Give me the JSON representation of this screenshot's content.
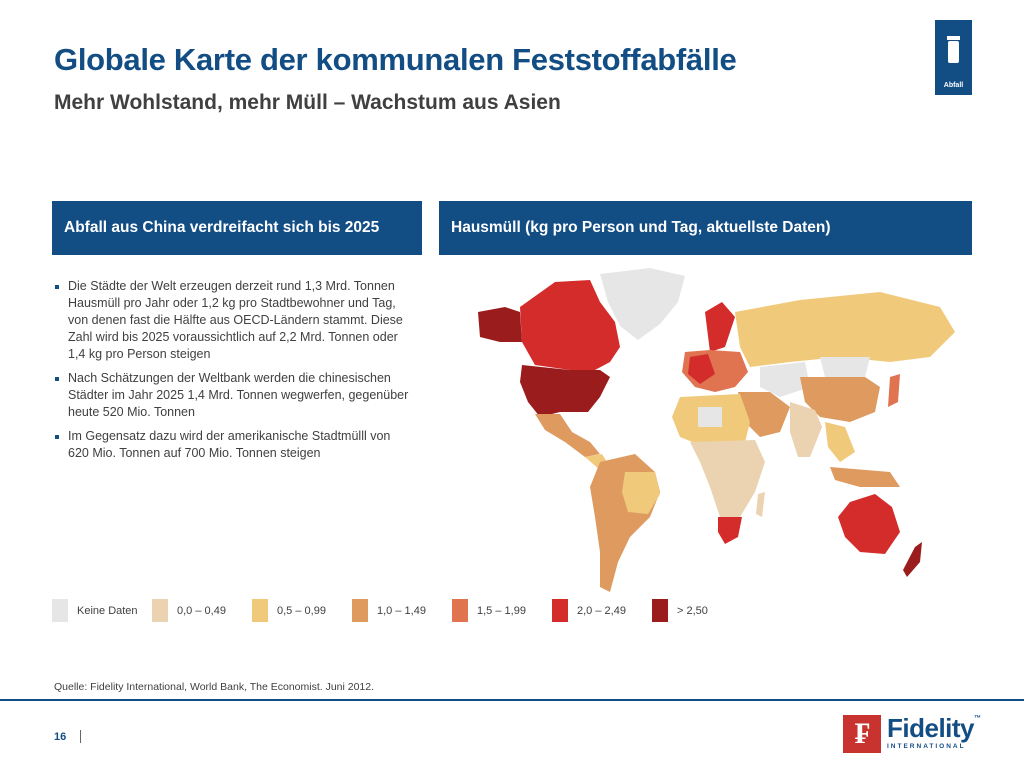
{
  "title": "Globale Karte der kommunalen Feststoffabfälle",
  "subtitle": "Mehr Wohlstand, mehr Müll – Wachstum aus Asien",
  "badge": {
    "icon": "trash-can-icon",
    "label": "Abfall"
  },
  "left_panel": {
    "header": "Abfall aus China verdreifacht sich bis 2025",
    "bullets": [
      "Die Städte der Welt erzeugen derzeit rund 1,3 Mrd. Tonnen Hausmüll pro Jahr oder 1,2 kg pro Stadtbewohner und Tag, von denen fast die Hälfte aus OECD-Ländern stammt. Diese Zahl wird bis 2025 voraussichtlich auf 2,2 Mrd. Tonnen oder 1,4 kg pro Person steigen",
      "Nach Schätzungen der Weltbank werden die chinesischen Städter im Jahr 2025 1,4 Mrd. Tonnen wegwerfen, gegenüber heute 520 Mio. Tonnen",
      "Im Gegensatz dazu wird der amerikanische Stadtmülll von 620 Mio. Tonnen auf 700 Mio. Tonnen steigen"
    ]
  },
  "right_panel": {
    "header": "Hausmüll (kg pro Person und Tag, aktuellste Daten)"
  },
  "legend": [
    {
      "label": "Keine Daten",
      "color": "#e6e6e6"
    },
    {
      "label": "0,0 – 0,49",
      "color": "#ebd2b0"
    },
    {
      "label": "0,5 – 0,99",
      "color": "#f1c97a"
    },
    {
      "label": "1,0 – 1,49",
      "color": "#de9a5f"
    },
    {
      "label": "1,5 – 1,99",
      "color": "#e07350"
    },
    {
      "label": "2,0 – 2,49",
      "color": "#d42b2b"
    },
    {
      "label": "> 2,50",
      "color": "#9b1c1c"
    }
  ],
  "source": "Quelle: Fidelity International, World Bank, The Economist. Juni 2012.",
  "page_number": "16",
  "logo": {
    "name": "Fidelity",
    "sub": "INTERNATIONAL",
    "tm": "™"
  }
}
